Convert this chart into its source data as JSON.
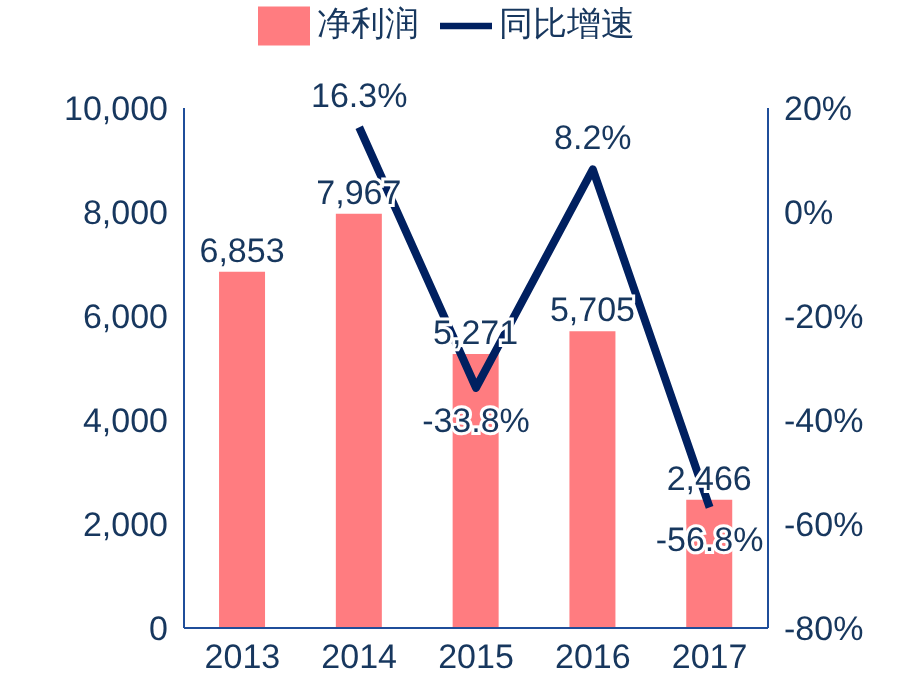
{
  "chart_data": {
    "type": "bar",
    "categories": [
      "2013",
      "2014",
      "2015",
      "2016",
      "2017"
    ],
    "series": [
      {
        "name": "净利润",
        "color": "#ff7c80",
        "values": [
          6853,
          7967,
          5271,
          5705,
          2466
        ],
        "value_labels": [
          "6,853",
          "7,967",
          "5,271",
          "5,705",
          "2,466"
        ]
      },
      {
        "name": "同比增速",
        "type": "line",
        "axis": "y2",
        "color": "#002060",
        "values": [
          null,
          16.3,
          -33.8,
          8.2,
          -56.8
        ],
        "value_labels": [
          null,
          "16.3%",
          "-33.8%",
          "8.2%",
          "-56.8%"
        ]
      }
    ],
    "ylim": [
      0,
      10000
    ],
    "yticks": [
      0,
      {
        "value": 2000,
        "label": "2,000"
      },
      {
        "value": 4000,
        "label": "4,000"
      },
      {
        "value": 6000,
        "label": "6,000"
      },
      {
        "value": 8000,
        "label": "8,000"
      },
      {
        "value": 10000,
        "label": "10,000"
      }
    ],
    "y2lim": [
      -80,
      20
    ],
    "y2ticks": [
      {
        "value": -80,
        "label": "-80%"
      },
      {
        "value": -60,
        "label": "-60%"
      },
      {
        "value": -40,
        "label": "-40%"
      },
      {
        "value": -20,
        "label": "-20%"
      },
      {
        "value": 0,
        "label": "0%"
      },
      {
        "value": 20,
        "label": "20%"
      }
    ],
    "grid": false,
    "legend": "top",
    "marker": "none"
  }
}
